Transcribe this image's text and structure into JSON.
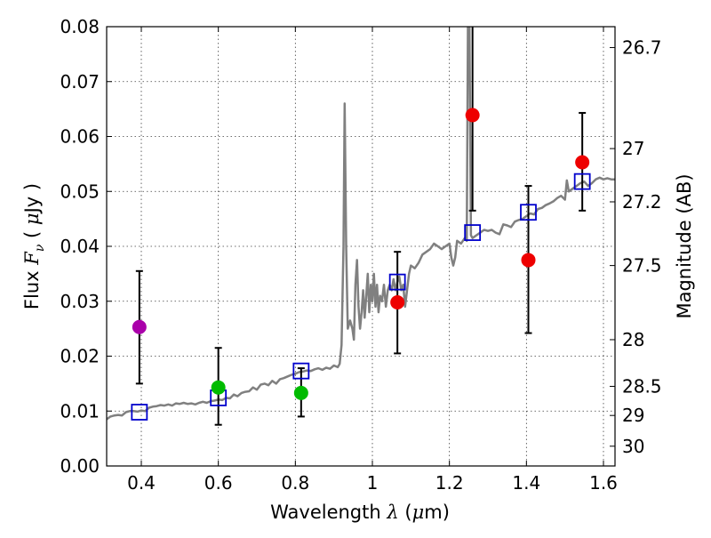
{
  "chart_data": {
    "type": "scatter",
    "xlabel_prefix": "Wavelength",
    "xlabel_symbol": "λ",
    "xlabel_unit_open": "(",
    "xlabel_unit_mu": "μ",
    "xlabel_unit_rest": "m)",
    "ylabel_prefix": "Flux",
    "ylabel_symbol": "F",
    "ylabel_sub": "ν",
    "ylabel_unit_open": "(",
    "ylabel_unit_mu": "μ",
    "ylabel_unit_rest": "Jy )",
    "ylabel_right": "Magnitude (AB)",
    "xlim": [
      0.31,
      1.63
    ],
    "ylim": [
      0.0,
      0.08
    ],
    "grid": true,
    "x_ticks": [
      0.4,
      0.6,
      0.8,
      1.0,
      1.2,
      1.4,
      1.6
    ],
    "x_tick_labels": [
      "0.4",
      "0.6",
      "0.8",
      "1",
      "1.2",
      "1.4",
      "1.6"
    ],
    "y_ticks": [
      0.0,
      0.01,
      0.02,
      0.03,
      0.04,
      0.05,
      0.06,
      0.07,
      0.08
    ],
    "y_tick_labels": [
      "0.00",
      "0.01",
      "0.02",
      "0.03",
      "0.04",
      "0.05",
      "0.06",
      "0.07",
      "0.08"
    ],
    "right_ticks": [
      {
        "label": "26.7",
        "flux": 0.0762
      },
      {
        "label": "27",
        "flux": 0.0578
      },
      {
        "label": "27.2",
        "flux": 0.0481
      },
      {
        "label": "27.5",
        "flux": 0.0365
      },
      {
        "label": "28",
        "flux": 0.023
      },
      {
        "label": "28.5",
        "flux": 0.0145
      },
      {
        "label": "29",
        "flux": 0.0092
      },
      {
        "label": "30",
        "flux": 0.0036
      }
    ],
    "colors": {
      "spectrum": "#808080",
      "model": "#0000cc",
      "magenta": "#aa00aa",
      "green": "#00bb00",
      "red": "#ee0000",
      "errorbar": "#000000"
    },
    "spectrum": [
      [
        0.31,
        0.0085
      ],
      [
        0.32,
        0.009
      ],
      [
        0.33,
        0.0092
      ],
      [
        0.34,
        0.0093
      ],
      [
        0.35,
        0.0092
      ],
      [
        0.36,
        0.0098
      ],
      [
        0.37,
        0.01
      ],
      [
        0.38,
        0.01
      ],
      [
        0.39,
        0.0099
      ],
      [
        0.4,
        0.0101
      ],
      [
        0.41,
        0.01
      ],
      [
        0.42,
        0.0106
      ],
      [
        0.43,
        0.0108
      ],
      [
        0.44,
        0.0109
      ],
      [
        0.45,
        0.0111
      ],
      [
        0.46,
        0.011
      ],
      [
        0.47,
        0.0112
      ],
      [
        0.48,
        0.011
      ],
      [
        0.49,
        0.0114
      ],
      [
        0.5,
        0.0113
      ],
      [
        0.51,
        0.0115
      ],
      [
        0.52,
        0.0113
      ],
      [
        0.53,
        0.0114
      ],
      [
        0.54,
        0.0112
      ],
      [
        0.55,
        0.0115
      ],
      [
        0.56,
        0.0117
      ],
      [
        0.57,
        0.0115
      ],
      [
        0.58,
        0.0118
      ],
      [
        0.59,
        0.0119
      ],
      [
        0.6,
        0.0121
      ],
      [
        0.61,
        0.012
      ],
      [
        0.62,
        0.0124
      ],
      [
        0.63,
        0.0123
      ],
      [
        0.64,
        0.013
      ],
      [
        0.65,
        0.0127
      ],
      [
        0.66,
        0.0133
      ],
      [
        0.67,
        0.0135
      ],
      [
        0.68,
        0.0136
      ],
      [
        0.69,
        0.0143
      ],
      [
        0.7,
        0.0139
      ],
      [
        0.71,
        0.0148
      ],
      [
        0.72,
        0.015
      ],
      [
        0.73,
        0.0147
      ],
      [
        0.74,
        0.0155
      ],
      [
        0.75,
        0.015
      ],
      [
        0.76,
        0.0158
      ],
      [
        0.77,
        0.016
      ],
      [
        0.78,
        0.0163
      ],
      [
        0.79,
        0.0166
      ],
      [
        0.8,
        0.0168
      ],
      [
        0.81,
        0.0171
      ],
      [
        0.82,
        0.0172
      ],
      [
        0.83,
        0.0174
      ],
      [
        0.84,
        0.0173
      ],
      [
        0.85,
        0.0176
      ],
      [
        0.86,
        0.0178
      ],
      [
        0.87,
        0.0175
      ],
      [
        0.88,
        0.0179
      ],
      [
        0.89,
        0.0177
      ],
      [
        0.9,
        0.0183
      ],
      [
        0.91,
        0.018
      ],
      [
        0.915,
        0.0186
      ],
      [
        0.92,
        0.022
      ],
      [
        0.925,
        0.04
      ],
      [
        0.928,
        0.066
      ],
      [
        0.932,
        0.04
      ],
      [
        0.936,
        0.025
      ],
      [
        0.942,
        0.0265
      ],
      [
        0.948,
        0.025
      ],
      [
        0.952,
        0.023
      ],
      [
        0.956,
        0.033
      ],
      [
        0.96,
        0.0375
      ],
      [
        0.964,
        0.029
      ],
      [
        0.968,
        0.025
      ],
      [
        0.972,
        0.028
      ],
      [
        0.976,
        0.032
      ],
      [
        0.98,
        0.027
      ],
      [
        0.984,
        0.031
      ],
      [
        0.988,
        0.035
      ],
      [
        0.992,
        0.028
      ],
      [
        0.996,
        0.033
      ],
      [
        1.0,
        0.03
      ],
      [
        1.004,
        0.035
      ],
      [
        1.008,
        0.029
      ],
      [
        1.012,
        0.033
      ],
      [
        1.016,
        0.028
      ],
      [
        1.02,
        0.031
      ],
      [
        1.025,
        0.03
      ],
      [
        1.03,
        0.033
      ],
      [
        1.035,
        0.029
      ],
      [
        1.04,
        0.032
      ],
      [
        1.045,
        0.033
      ],
      [
        1.05,
        0.032
      ],
      [
        1.055,
        0.034
      ],
      [
        1.06,
        0.032
      ],
      [
        1.065,
        0.0335
      ],
      [
        1.07,
        0.0345
      ],
      [
        1.075,
        0.032
      ],
      [
        1.08,
        0.033
      ],
      [
        1.085,
        0.029
      ],
      [
        1.09,
        0.032
      ],
      [
        1.095,
        0.035
      ],
      [
        1.1,
        0.0365
      ],
      [
        1.11,
        0.036
      ],
      [
        1.12,
        0.037
      ],
      [
        1.13,
        0.0385
      ],
      [
        1.14,
        0.039
      ],
      [
        1.15,
        0.0395
      ],
      [
        1.16,
        0.0405
      ],
      [
        1.17,
        0.04
      ],
      [
        1.18,
        0.0395
      ],
      [
        1.19,
        0.04
      ],
      [
        1.2,
        0.0405
      ],
      [
        1.205,
        0.038
      ],
      [
        1.21,
        0.0365
      ],
      [
        1.215,
        0.038
      ],
      [
        1.22,
        0.041
      ],
      [
        1.23,
        0.0405
      ],
      [
        1.24,
        0.0415
      ],
      [
        1.245,
        0.041
      ],
      [
        1.248,
        0.08
      ],
      [
        1.252,
        0.08
      ],
      [
        1.256,
        0.042
      ],
      [
        1.26,
        0.0415
      ],
      [
        1.27,
        0.042
      ],
      [
        1.28,
        0.0425
      ],
      [
        1.29,
        0.043
      ],
      [
        1.3,
        0.0428
      ],
      [
        1.31,
        0.043
      ],
      [
        1.32,
        0.0425
      ],
      [
        1.33,
        0.0422
      ],
      [
        1.34,
        0.044
      ],
      [
        1.35,
        0.0438
      ],
      [
        1.36,
        0.0435
      ],
      [
        1.37,
        0.0445
      ],
      [
        1.38,
        0.0448
      ],
      [
        1.39,
        0.045
      ],
      [
        1.4,
        0.0455
      ],
      [
        1.41,
        0.046
      ],
      [
        1.42,
        0.0458
      ],
      [
        1.43,
        0.0468
      ],
      [
        1.44,
        0.047
      ],
      [
        1.45,
        0.0475
      ],
      [
        1.46,
        0.0478
      ],
      [
        1.47,
        0.0482
      ],
      [
        1.48,
        0.0488
      ],
      [
        1.49,
        0.0492
      ],
      [
        1.5,
        0.0485
      ],
      [
        1.505,
        0.052
      ],
      [
        1.51,
        0.05
      ],
      [
        1.52,
        0.0505
      ],
      [
        1.53,
        0.051
      ],
      [
        1.54,
        0.0515
      ],
      [
        1.55,
        0.0518
      ],
      [
        1.56,
        0.051
      ],
      [
        1.57,
        0.0515
      ],
      [
        1.58,
        0.0522
      ],
      [
        1.59,
        0.0525
      ],
      [
        1.6,
        0.0522
      ],
      [
        1.61,
        0.0524
      ],
      [
        1.62,
        0.0522
      ],
      [
        1.63,
        0.0522
      ]
    ],
    "model_points": [
      {
        "x": 0.395,
        "y": 0.0098
      },
      {
        "x": 0.6,
        "y": 0.0124
      },
      {
        "x": 0.815,
        "y": 0.0173
      },
      {
        "x": 1.065,
        "y": 0.0335
      },
      {
        "x": 1.26,
        "y": 0.0425
      },
      {
        "x": 1.405,
        "y": 0.0462
      },
      {
        "x": 1.545,
        "y": 0.0518
      }
    ],
    "observations": [
      {
        "x": 0.395,
        "y": 0.0253,
        "err_low": 0.015,
        "err_high": 0.0355,
        "color": "magenta"
      },
      {
        "x": 0.6,
        "y": 0.0143,
        "err_low": 0.0075,
        "err_high": 0.0215,
        "color": "green"
      },
      {
        "x": 0.815,
        "y": 0.0133,
        "err_low": 0.009,
        "err_high": 0.0178,
        "color": "green"
      },
      {
        "x": 1.065,
        "y": 0.0298,
        "err_low": 0.0205,
        "err_high": 0.039,
        "color": "red"
      },
      {
        "x": 1.26,
        "y": 0.0639,
        "err_low": 0.0465,
        "err_high": 0.08,
        "color": "red"
      },
      {
        "x": 1.405,
        "y": 0.0375,
        "err_low": 0.0242,
        "err_high": 0.051,
        "color": "red"
      },
      {
        "x": 1.545,
        "y": 0.0553,
        "err_low": 0.0465,
        "err_high": 0.0643,
        "color": "red"
      }
    ]
  }
}
